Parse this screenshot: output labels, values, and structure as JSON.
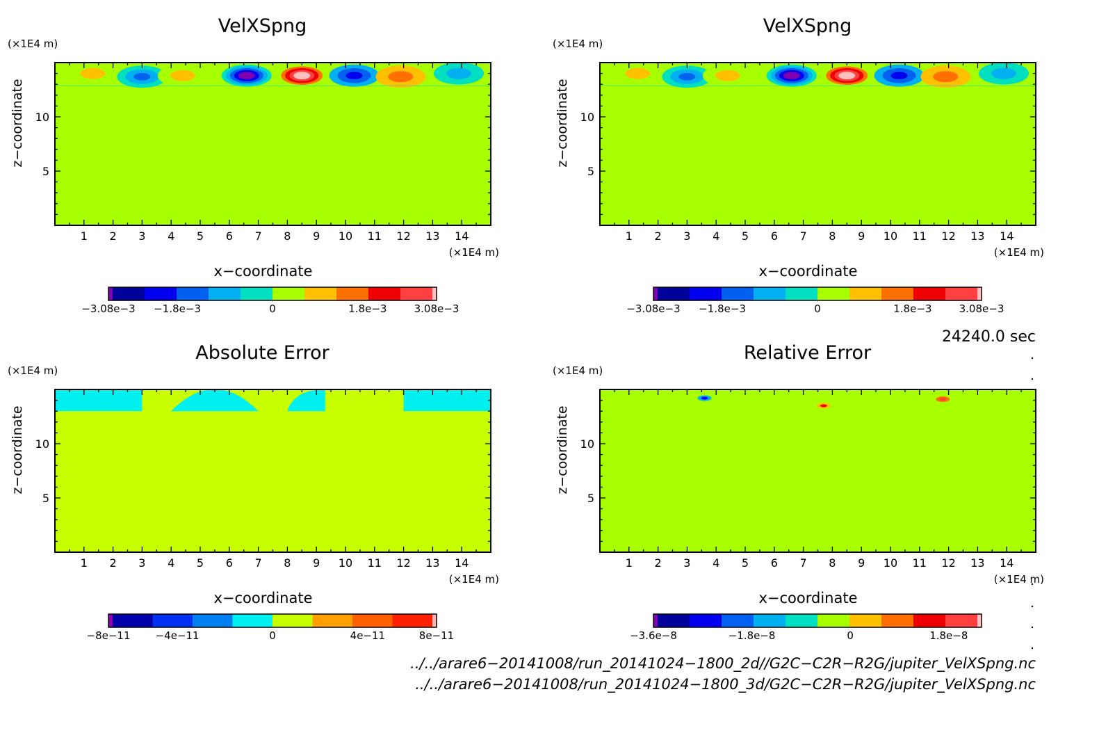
{
  "panels": [
    {
      "title": "VelXSpng",
      "xlabel": "x−coordinate",
      "ylabel": "z−coordinate",
      "x_unit": "(×1E4 m)",
      "y_unit": "(×1E4 m)",
      "x_ticks": [
        "1",
        "2",
        "3",
        "4",
        "5",
        "6",
        "7",
        "8",
        "9",
        "10",
        "11",
        "12",
        "13",
        "14"
      ],
      "y_ticks": [
        "5",
        "10"
      ],
      "colorbar": {
        "colors": [
          "#7f00b0",
          "#00009a",
          "#0000ee",
          "#0060f0",
          "#00b0f0",
          "#00e0c0",
          "#a8ff00",
          "#ffc000",
          "#ff7000",
          "#ee0000",
          "#ff4040",
          "#ffc0c0"
        ],
        "labels": [
          "−3.08e−3",
          "−1.8e−3",
          "0",
          "1.8e−3",
          "3.08e−3"
        ]
      }
    },
    {
      "title": "VelXSpng",
      "xlabel": "x−coordinate",
      "ylabel": "z−coordinate",
      "x_unit": "(×1E4 m)",
      "y_unit": "(×1E4 m)",
      "x_ticks": [
        "1",
        "2",
        "3",
        "4",
        "5",
        "6",
        "7",
        "8",
        "9",
        "10",
        "11",
        "12",
        "13",
        "14"
      ],
      "y_ticks": [
        "5",
        "10"
      ],
      "colorbar": {
        "colors": [
          "#7f00b0",
          "#00009a",
          "#0000ee",
          "#0060f0",
          "#00b0f0",
          "#00e0c0",
          "#a8ff00",
          "#ffc000",
          "#ff7000",
          "#ee0000",
          "#ff4040",
          "#ffc0c0"
        ],
        "labels": [
          "−3.08e−3",
          "−1.8e−3",
          "0",
          "1.8e−3",
          "3.08e−3"
        ]
      }
    },
    {
      "title": "Absolute Error",
      "xlabel": "x−coordinate",
      "ylabel": "z−coordinate",
      "x_unit": "(×1E4 m)",
      "y_unit": "(×1E4 m)",
      "x_ticks": [
        "1",
        "2",
        "3",
        "4",
        "5",
        "6",
        "7",
        "8",
        "9",
        "10",
        "11",
        "12",
        "13",
        "14"
      ],
      "y_ticks": [
        "5",
        "10"
      ],
      "colorbar": {
        "colors": [
          "#8a00b0",
          "#0000aa",
          "#0030f0",
          "#0080f0",
          "#00f0f0",
          "#c8ff00",
          "#ffa000",
          "#ff6000",
          "#ff2000",
          "#ffb0b0"
        ],
        "labels": [
          "−8e−11",
          "−4e−11",
          "0",
          "4e−11",
          "8e−11"
        ]
      }
    },
    {
      "title": "Relative Error",
      "xlabel": "x−coordinate",
      "ylabel": "z−coordinate",
      "x_unit": "(×1E4 m)",
      "y_unit": "(×1E4 m)",
      "x_ticks": [
        "1",
        "2",
        "3",
        "4",
        "5",
        "6",
        "7",
        "8",
        "9",
        "10",
        "11",
        "12",
        "13",
        "14"
      ],
      "y_ticks": [
        "5",
        "10"
      ],
      "colorbar": {
        "colors": [
          "#7f00b0",
          "#00009a",
          "#0000ee",
          "#0060f0",
          "#00b0f0",
          "#00e0c0",
          "#a8ff00",
          "#ffc000",
          "#ff7000",
          "#ee0000",
          "#ff4040",
          "#ffc0c0"
        ],
        "labels": [
          "−3.6e−8",
          "−1.8e−8",
          "0",
          "1.8e−8"
        ]
      }
    }
  ],
  "time_label": "24240.0 sec",
  "files": [
    "../../arare6−20141008/run_20141024−1800_2d//G2C−C2R−R2G/jupiter_VelXSpng.nc",
    "../../arare6−20141008/run_20141024−1800_3d/G2C−C2R−R2G/jupiter_VelXSpng.nc"
  ],
  "chart_data": [
    {
      "type": "heatmap",
      "title": "VelXSpng",
      "xlabel": "x−coordinate",
      "ylabel": "z−coordinate",
      "xlim": [
        0,
        15
      ],
      "ylim": [
        0,
        15
      ],
      "background_value": 0,
      "colorbar_ticks": [
        "−3.08e−3",
        "−1.8e−3",
        "0",
        "1.8e−3",
        "3.08e−3"
      ],
      "features": [
        {
          "x": 1.3,
          "z": 14.0,
          "value": 0.0009
        },
        {
          "x": 3.0,
          "z": 13.7,
          "value": -0.0014
        },
        {
          "x": 4.4,
          "z": 13.8,
          "value": 0.0008
        },
        {
          "x": 6.6,
          "z": 13.8,
          "value": -0.00308
        },
        {
          "x": 8.5,
          "z": 13.8,
          "value": 0.00308
        },
        {
          "x": 10.3,
          "z": 13.8,
          "value": -0.0016
        },
        {
          "x": 11.9,
          "z": 13.7,
          "value": 0.0011
        },
        {
          "x": 13.9,
          "z": 14.0,
          "value": -0.0008
        }
      ]
    },
    {
      "type": "heatmap",
      "title": "VelXSpng",
      "xlabel": "x−coordinate",
      "ylabel": "z−coordinate",
      "xlim": [
        0,
        15
      ],
      "ylim": [
        0,
        15
      ],
      "background_value": 0,
      "colorbar_ticks": [
        "−3.08e−3",
        "−1.8e−3",
        "0",
        "1.8e−3",
        "3.08e−3"
      ],
      "features": [
        {
          "x": 1.3,
          "z": 14.0,
          "value": 0.0009
        },
        {
          "x": 3.0,
          "z": 13.7,
          "value": -0.0014
        },
        {
          "x": 4.4,
          "z": 13.8,
          "value": 0.0008
        },
        {
          "x": 6.6,
          "z": 13.8,
          "value": -0.00308
        },
        {
          "x": 8.5,
          "z": 13.8,
          "value": 0.00308
        },
        {
          "x": 10.3,
          "z": 13.8,
          "value": -0.0016
        },
        {
          "x": 11.9,
          "z": 13.7,
          "value": 0.0011
        },
        {
          "x": 13.9,
          "z": 14.0,
          "value": -0.0008
        }
      ]
    },
    {
      "type": "heatmap",
      "title": "Absolute Error",
      "xlabel": "x−coordinate",
      "ylabel": "z−coordinate",
      "xlim": [
        0,
        15
      ],
      "ylim": [
        0,
        15
      ],
      "background_value": 1e-11,
      "colorbar_ticks": [
        "−8e−11",
        "−4e−11",
        "0",
        "4e−11",
        "8e−11"
      ],
      "features": [
        {
          "x_range": [
            0,
            3
          ],
          "z_range": [
            13,
            15
          ],
          "value": -1e-11
        },
        {
          "x_range": [
            4,
            7
          ],
          "z_range": [
            13,
            14.5
          ],
          "value": -1e-11
        },
        {
          "x_range": [
            8,
            9.3
          ],
          "z_range": [
            13,
            15
          ],
          "value": -1e-11
        },
        {
          "x_range": [
            12,
            15
          ],
          "z_range": [
            13,
            15
          ],
          "value": -1e-11
        }
      ]
    },
    {
      "type": "heatmap",
      "title": "Relative Error",
      "xlabel": "x−coordinate",
      "ylabel": "z−coordinate",
      "xlim": [
        0,
        15
      ],
      "ylim": [
        0,
        15
      ],
      "background_value": 5e-09,
      "colorbar_ticks": [
        "−3.6e−8",
        "−1.8e−8",
        "0",
        "1.8e−8"
      ],
      "features": [
        {
          "x_range": [
            0,
            15
          ],
          "z_range": [
            13,
            15
          ],
          "value": 0,
          "note_pattern": "mixed patches"
        },
        {
          "x": 3.6,
          "z": 14.2,
          "value": -2.5e-08
        },
        {
          "x": 7.7,
          "z": 13.5,
          "value": 2.5e-08
        },
        {
          "x": 11.8,
          "z": 14.1,
          "value": 3e-08
        }
      ]
    }
  ]
}
